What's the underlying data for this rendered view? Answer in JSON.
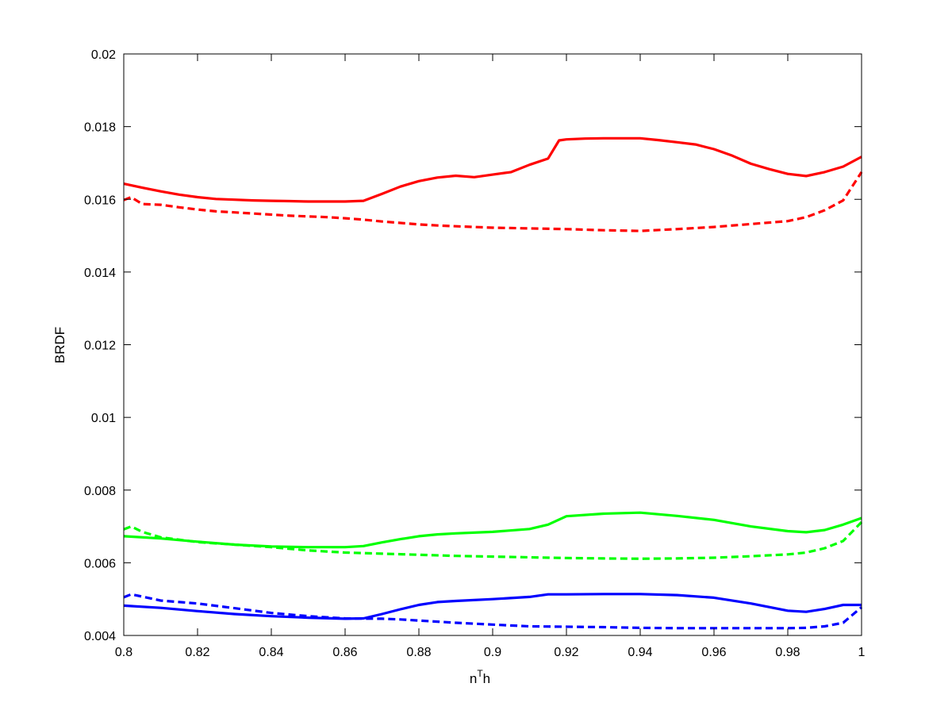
{
  "chart_data": {
    "type": "line",
    "xlabel": {
      "base": "n",
      "sup": "T",
      "tail": "h"
    },
    "ylabel": "BRDF",
    "xlim": [
      0.8,
      1.0
    ],
    "ylim": [
      0.004,
      0.02
    ],
    "xticks": [
      0.8,
      0.82,
      0.84,
      0.86,
      0.88,
      0.9,
      0.92,
      0.94,
      0.96,
      0.98,
      1.0
    ],
    "xtick_labels": [
      "0.8",
      "0.82",
      "0.84",
      "0.86",
      "0.88",
      "0.9",
      "0.92",
      "0.94",
      "0.96",
      "0.98",
      "1"
    ],
    "yticks": [
      0.004,
      0.006,
      0.008,
      0.01,
      0.012,
      0.014,
      0.016,
      0.018,
      0.02
    ],
    "ytick_labels": [
      "0.004",
      "0.006",
      "0.008",
      "0.01",
      "0.012",
      "0.014",
      "0.016",
      "0.018",
      "0.02"
    ],
    "grid": false,
    "legend": "none",
    "series": [
      {
        "color": "#ff0000",
        "style": "solid",
        "x": [
          0.8,
          0.805,
          0.81,
          0.815,
          0.82,
          0.825,
          0.83,
          0.835,
          0.84,
          0.845,
          0.85,
          0.855,
          0.86,
          0.865,
          0.87,
          0.875,
          0.88,
          0.885,
          0.89,
          0.895,
          0.9,
          0.905,
          0.91,
          0.915,
          0.918,
          0.92,
          0.925,
          0.93,
          0.935,
          0.94,
          0.945,
          0.95,
          0.955,
          0.96,
          0.965,
          0.97,
          0.975,
          0.98,
          0.985,
          0.99,
          0.995,
          1.0
        ],
        "y": [
          0.01643,
          0.01632,
          0.01622,
          0.01613,
          0.01606,
          0.01601,
          0.01599,
          0.01597,
          0.01596,
          0.01595,
          0.01594,
          0.01594,
          0.01594,
          0.01596,
          0.01615,
          0.01635,
          0.0165,
          0.0166,
          0.01665,
          0.01661,
          0.01668,
          0.01675,
          0.01695,
          0.01712,
          0.01762,
          0.01765,
          0.01767,
          0.01768,
          0.01768,
          0.01768,
          0.01763,
          0.01757,
          0.01751,
          0.01738,
          0.0172,
          0.01698,
          0.01683,
          0.0167,
          0.01664,
          0.01675,
          0.0169,
          0.01717
        ]
      },
      {
        "color": "#ff0000",
        "style": "dashed",
        "x": [
          0.8,
          0.802,
          0.805,
          0.81,
          0.815,
          0.82,
          0.825,
          0.83,
          0.835,
          0.84,
          0.845,
          0.85,
          0.855,
          0.86,
          0.865,
          0.87,
          0.875,
          0.88,
          0.885,
          0.89,
          0.9,
          0.91,
          0.92,
          0.93,
          0.94,
          0.95,
          0.96,
          0.97,
          0.98,
          0.985,
          0.99,
          0.995,
          1.0
        ],
        "y": [
          0.01598,
          0.01606,
          0.01587,
          0.01585,
          0.01578,
          0.01572,
          0.01567,
          0.01564,
          0.01561,
          0.01558,
          0.01555,
          0.01553,
          0.01551,
          0.01548,
          0.01544,
          0.01539,
          0.01535,
          0.01531,
          0.01528,
          0.01526,
          0.01522,
          0.0152,
          0.01518,
          0.01515,
          0.01513,
          0.01518,
          0.01524,
          0.01532,
          0.0154,
          0.01551,
          0.0157,
          0.01597,
          0.01675
        ]
      },
      {
        "color": "#00ff00",
        "style": "solid",
        "x": [
          0.8,
          0.81,
          0.82,
          0.83,
          0.84,
          0.85,
          0.86,
          0.865,
          0.87,
          0.875,
          0.88,
          0.885,
          0.89,
          0.9,
          0.91,
          0.915,
          0.92,
          0.93,
          0.94,
          0.95,
          0.96,
          0.97,
          0.98,
          0.985,
          0.99,
          0.995,
          1.0
        ],
        "y": [
          0.00673,
          0.00667,
          0.00658,
          0.0065,
          0.00645,
          0.00643,
          0.00643,
          0.00646,
          0.00656,
          0.00665,
          0.00673,
          0.00678,
          0.00681,
          0.00685,
          0.00693,
          0.00705,
          0.00728,
          0.00735,
          0.00738,
          0.00729,
          0.00718,
          0.007,
          0.00687,
          0.00684,
          0.0069,
          0.00705,
          0.00723
        ]
      },
      {
        "color": "#00ff00",
        "style": "dashed",
        "x": [
          0.8,
          0.802,
          0.805,
          0.81,
          0.82,
          0.83,
          0.84,
          0.85,
          0.86,
          0.87,
          0.88,
          0.89,
          0.9,
          0.91,
          0.92,
          0.93,
          0.94,
          0.95,
          0.96,
          0.97,
          0.98,
          0.985,
          0.99,
          0.995,
          1.0
        ],
        "y": [
          0.00692,
          0.007,
          0.00685,
          0.0067,
          0.00657,
          0.0065,
          0.00643,
          0.00634,
          0.00628,
          0.00625,
          0.00622,
          0.00619,
          0.00617,
          0.00615,
          0.00613,
          0.00612,
          0.00611,
          0.00612,
          0.00614,
          0.00618,
          0.00623,
          0.00628,
          0.0064,
          0.0066,
          0.00712
        ]
      },
      {
        "color": "#0000ff",
        "style": "solid",
        "x": [
          0.8,
          0.81,
          0.82,
          0.83,
          0.84,
          0.85,
          0.86,
          0.865,
          0.87,
          0.875,
          0.88,
          0.885,
          0.89,
          0.9,
          0.91,
          0.915,
          0.92,
          0.93,
          0.94,
          0.95,
          0.96,
          0.97,
          0.98,
          0.985,
          0.99,
          0.995,
          1.0
        ],
        "y": [
          0.00482,
          0.00476,
          0.00467,
          0.00459,
          0.00453,
          0.00449,
          0.00446,
          0.00447,
          0.00459,
          0.00472,
          0.00484,
          0.00492,
          0.00495,
          0.005,
          0.00506,
          0.00513,
          0.00513,
          0.00514,
          0.00514,
          0.00511,
          0.00504,
          0.00488,
          0.00468,
          0.00465,
          0.00473,
          0.00484,
          0.00484
        ]
      },
      {
        "color": "#0000ff",
        "style": "dashed",
        "x": [
          0.8,
          0.802,
          0.805,
          0.81,
          0.82,
          0.83,
          0.84,
          0.85,
          0.86,
          0.87,
          0.875,
          0.88,
          0.885,
          0.89,
          0.9,
          0.91,
          0.92,
          0.93,
          0.94,
          0.95,
          0.96,
          0.97,
          0.98,
          0.985,
          0.99,
          0.995,
          1.0
        ],
        "y": [
          0.00505,
          0.00513,
          0.00507,
          0.00496,
          0.00488,
          0.00475,
          0.00462,
          0.00453,
          0.00447,
          0.00446,
          0.00444,
          0.00441,
          0.00438,
          0.00435,
          0.0043,
          0.00425,
          0.00424,
          0.00423,
          0.00421,
          0.0042,
          0.0042,
          0.0042,
          0.0042,
          0.00421,
          0.00425,
          0.00435,
          0.00478
        ]
      }
    ]
  }
}
